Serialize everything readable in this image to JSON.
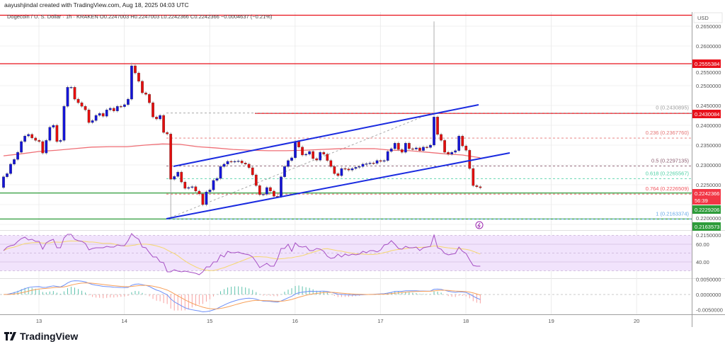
{
  "header": {
    "credit": "aayushjindal created with TradingView.com, Aug 18, 2025 04:03 UTC",
    "legend": "Dogecoin / U. S. Dollar · 1h · KRAKEN  O0.2247003  H0.2247003  L0.2242366  C0.2242366  −0.0004637 (−0.21%)"
  },
  "brand": {
    "name": "TradingView"
  },
  "chart_data": {
    "type": "candlestick",
    "symbol": "Dogecoin / U. S. Dollar",
    "interval": "1h",
    "exchange": "KRAKEN",
    "currency_label": "USD",
    "colors": {
      "up": "#1414d8",
      "down": "#e50d0d",
      "ma": "#ef6f76",
      "channel": "#1a2be0",
      "rsi": "#a64fc4",
      "rsi_ma": "#f5d76e",
      "macd": "#6d8ff7",
      "signal": "#f7a05a"
    },
    "x_tick_labels": [
      "13",
      "14",
      "15",
      "16",
      "17",
      "18",
      "19",
      "20"
    ],
    "y_tick_labels": [
      "0.2650000",
      "0.2600000",
      "0.2550000",
      "0.2500000",
      "0.2450000",
      "0.2400000",
      "0.2350000",
      "0.2300000",
      "0.2250000",
      "0.2200000",
      "0.2150000"
    ],
    "ylim": [
      0.2135,
      0.2685
    ],
    "first_open": 0.2243,
    "close": [
      0.227,
      0.2278,
      0.2302,
      0.2314,
      0.2332,
      0.2359,
      0.2373,
      0.2377,
      0.2368,
      0.2362,
      0.2359,
      0.233,
      0.2362,
      0.2395,
      0.24,
      0.2359,
      0.2362,
      0.2448,
      0.2496,
      0.2496,
      0.2466,
      0.2457,
      0.2448,
      0.2439,
      0.2407,
      0.2412,
      0.2425,
      0.243,
      0.2423,
      0.2439,
      0.2443,
      0.2436,
      0.2448,
      0.2447,
      0.2452,
      0.2466,
      0.255,
      0.2532,
      0.2511,
      0.2482,
      0.2478,
      0.2457,
      0.2421,
      0.2416,
      0.2425,
      0.2382,
      0.2378,
      0.2264,
      0.2271,
      0.2282,
      0.2257,
      0.2241,
      0.2243,
      0.2245,
      0.2234,
      0.2227,
      0.22,
      0.2232,
      0.2237,
      0.2261,
      0.2266,
      0.2296,
      0.2302,
      0.2309,
      0.2308,
      0.2309,
      0.231,
      0.2305,
      0.2302,
      0.2293,
      0.2275,
      0.2248,
      0.2225,
      0.2226,
      0.2243,
      0.2234,
      0.2221,
      0.222,
      0.227,
      0.2296,
      0.2311,
      0.2318,
      0.2359,
      0.2345,
      0.2325,
      0.2327,
      0.2334,
      0.2316,
      0.2312,
      0.2332,
      0.2327,
      0.2311,
      0.2296,
      0.2278,
      0.2273,
      0.2291,
      0.229,
      0.2287,
      0.2291,
      0.2294,
      0.2296,
      0.2302,
      0.2303,
      0.2305,
      0.2304,
      0.2311,
      0.2309,
      0.2311,
      0.2334,
      0.2341,
      0.2355,
      0.2339,
      0.2332,
      0.2355,
      0.2341,
      0.234,
      0.2343,
      0.2336,
      0.2345,
      0.2344,
      0.235,
      0.2421,
      0.2377,
      0.2362,
      0.2332,
      0.2327,
      0.2332,
      0.2336,
      0.2373,
      0.2348,
      0.2337,
      0.2291,
      0.2248,
      0.2245,
      0.2242366
    ],
    "wick_extremes": [
      {
        "candle": 121,
        "high": 0.2662
      },
      {
        "candle": 47,
        "low": 0.2163
      },
      {
        "candle": 36,
        "high": 0.2558
      }
    ],
    "moving_average": [
      0.2323,
      0.2328,
      0.2334,
      0.2337,
      0.2341,
      0.2345,
      0.2346,
      0.2346,
      0.235,
      0.2353,
      0.2352,
      0.2346,
      0.2343,
      0.2339,
      0.2337,
      0.2336,
      0.2336,
      0.2337,
      0.2339,
      0.2341,
      0.2341,
      0.2341,
      0.2337,
      0.2336,
      0.2332,
      0.2328,
      0.2325,
      0.2318
    ],
    "horizontal_levels": [
      {
        "price": 0.2555384,
        "label": "0.2555384",
        "color": "#e8101a"
      },
      {
        "price": 0.2430084,
        "label": "0.2430084",
        "color": "#e8101a"
      },
      {
        "price": 0.2229206,
        "label": "0.2229206",
        "color": "#2e9c3a"
      },
      {
        "price": 0.2163573,
        "label": "0.2163573",
        "color": "#2e9c3a"
      }
    ],
    "last_price": {
      "label": "0.2242366",
      "countdown": "56:39",
      "color": "#f23645"
    },
    "fib_levels": [
      {
        "ratio": "0",
        "price": 0.2430895,
        "text": "0 (0.2430895)",
        "color": "#9e9e9e"
      },
      {
        "ratio": "0.236",
        "price": 0.236776,
        "text": "0.236 (0.2367760)",
        "color": "#e57373"
      },
      {
        "ratio": "0.5",
        "price": 0.2297135,
        "text": "0.5 (0.2297135)",
        "color": "#8a5a6e"
      },
      {
        "ratio": "0.618",
        "price": 0.2265567,
        "text": "0.618 (0.2265567)",
        "color": "#4fd1a5"
      },
      {
        "ratio": "0.764",
        "price": 0.2226509,
        "text": "0.764 (0.2226509)",
        "color": "#f0545c"
      },
      {
        "ratio": "1",
        "price": 0.2163374,
        "text": "1 (0.2163374)",
        "color": "#64a8e8"
      }
    ],
    "rsi": {
      "tick_labels": [
        "60.00",
        "40.00"
      ],
      "band": [
        30,
        70
      ],
      "values": [
        52.8,
        56.8,
        58.4,
        59.2,
        63.2,
        66.4,
        68.0,
        64.8,
        65.6,
        63.2,
        63.2,
        54.4,
        61.6,
        64.0,
        65.6,
        56.0,
        56.0,
        67.2,
        71.2,
        71.2,
        65.6,
        64.0,
        63.2,
        60.8,
        53.6,
        55.2,
        56.0,
        56.0,
        56.0,
        57.6,
        56.8,
        56.8,
        59.2,
        58.4,
        58.4,
        64.0,
        72.0,
        68.0,
        65.6,
        56.8,
        56.0,
        50.4,
        45.6,
        45.6,
        40.0,
        39.2,
        28.8,
        28.8,
        31.2,
        29.6,
        28.8,
        29.6,
        28.8,
        28.0,
        27.2,
        25.6,
        28.8,
        34.4,
        34.4,
        40.0,
        40.0,
        48.0,
        45.6,
        52.0,
        50.4,
        50.4,
        51.2,
        49.6,
        48.8,
        48.0,
        45.6,
        40.0,
        33.6,
        36.0,
        38.4,
        35.2,
        35.2,
        43.2,
        55.2,
        55.2,
        60.0,
        52.0,
        61.6,
        57.6,
        56.8,
        57.6,
        52.8,
        52.8,
        55.2,
        54.4,
        52.0,
        46.4,
        44.0,
        44.8,
        48.8,
        45.6,
        48.8,
        47.2,
        48.8,
        48.0,
        48.8,
        52.0,
        50.4,
        52.8,
        52.8,
        51.2,
        53.6,
        59.2,
        60.0,
        64.0,
        60.0,
        55.2,
        54.4,
        57.6,
        56.0,
        56.0,
        56.8,
        52.8,
        56.0,
        56.8,
        57.6,
        70.4,
        56.0,
        54.4,
        49.6,
        48.0,
        48.8,
        49.6,
        56.8,
        52.0,
        49.6,
        42.4,
        36.0,
        35.2,
        35.2
      ]
    },
    "macd": {
      "tick_labels": [
        "0.0050000",
        "0.0000000",
        "-0.0050000"
      ]
    }
  }
}
